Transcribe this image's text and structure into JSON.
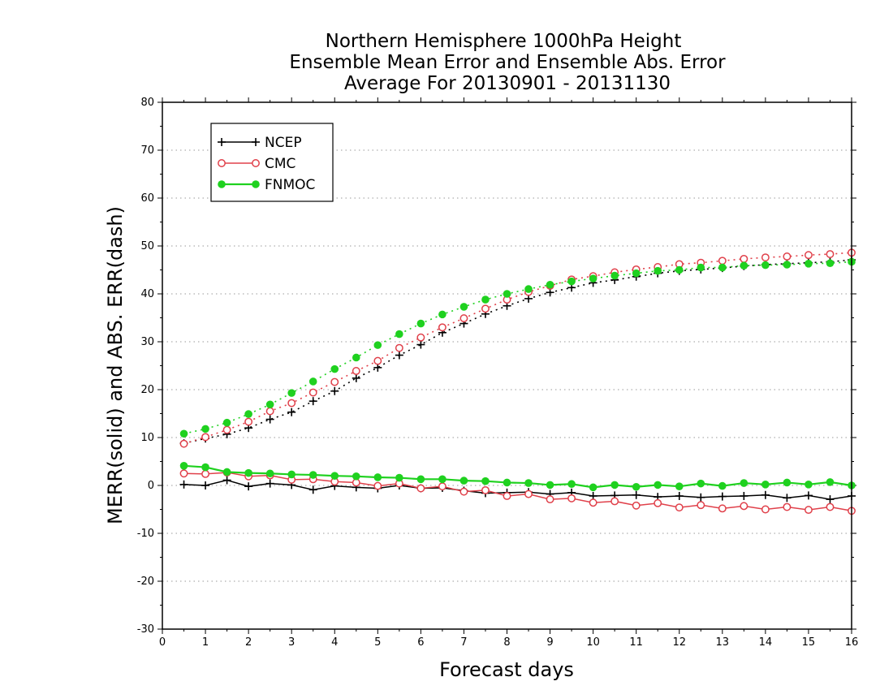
{
  "chart_data": {
    "type": "line",
    "title": [
      "Northern Hemisphere 1000hPa Height",
      "Ensemble Mean Error and Ensemble Abs. Error",
      "Average For 20130901 - 20131130"
    ],
    "xlabel": "Forecast days",
    "ylabel": "MERR(solid) and ABS. ERR(dash)",
    "xlim": [
      0,
      16
    ],
    "ylim": [
      -30,
      80
    ],
    "xticks": [
      0,
      1,
      2,
      3,
      4,
      5,
      6,
      7,
      8,
      9,
      10,
      11,
      12,
      13,
      14,
      15,
      16
    ],
    "yticks": [
      -30,
      -20,
      -10,
      0,
      10,
      20,
      30,
      40,
      50,
      60,
      70,
      80
    ],
    "grid": "horizontal dotted",
    "legend_position": "top-left",
    "x": [
      0.5,
      1,
      1.5,
      2,
      2.5,
      3,
      3.5,
      4,
      4.5,
      5,
      5.5,
      6,
      6.5,
      7,
      7.5,
      8,
      8.5,
      9,
      9.5,
      10,
      10.5,
      11,
      11.5,
      12,
      12.5,
      13,
      13.5,
      14,
      14.5,
      15,
      15.5,
      16
    ],
    "series": [
      {
        "name": "NCEP",
        "color": "#000000",
        "marker": "plus",
        "merr": [
          0.2,
          0,
          1.1,
          -0.2,
          0.4,
          0.1,
          -0.9,
          -0.1,
          -0.4,
          -0.6,
          0,
          -0.6,
          -0.5,
          -1.1,
          -1.6,
          -1.5,
          -1.4,
          -1.8,
          -1.5,
          -2.2,
          -2.1,
          -2.0,
          -2.4,
          -2.2,
          -2.5,
          -2.3,
          -2.2,
          -2.0,
          -2.6,
          -2.1,
          -2.9,
          -2.2
        ],
        "abs_err": [
          8.8,
          9.8,
          10.7,
          12.0,
          13.8,
          15.3,
          17.6,
          19.7,
          22.4,
          24.6,
          27.2,
          29.4,
          31.9,
          33.8,
          35.8,
          37.5,
          39.0,
          40.3,
          41.3,
          42.3,
          42.9,
          43.6,
          44.3,
          44.8,
          45.1,
          45.4,
          45.8,
          46.1,
          46.3,
          46.5,
          46.7,
          47.1
        ]
      },
      {
        "name": "CMC",
        "color": "#e0404a",
        "marker": "open-circle",
        "merr": [
          2.5,
          2.4,
          2.7,
          1.9,
          2.1,
          1.2,
          1.3,
          0.8,
          0.6,
          -0.1,
          0.4,
          -0.6,
          -0.2,
          -1.3,
          -1.0,
          -2.2,
          -1.8,
          -2.9,
          -2.7,
          -3.6,
          -3.3,
          -4.2,
          -3.7,
          -4.6,
          -4.1,
          -4.8,
          -4.3,
          -5.0,
          -4.5,
          -5.1,
          -4.5,
          -5.3
        ],
        "abs_err": [
          8.7,
          10.1,
          11.6,
          13.3,
          15.5,
          17.2,
          19.4,
          21.6,
          23.9,
          26.0,
          28.7,
          30.9,
          33.0,
          34.9,
          36.9,
          38.8,
          40.4,
          41.7,
          43.0,
          43.7,
          44.5,
          45.1,
          45.6,
          46.2,
          46.5,
          46.9,
          47.3,
          47.6,
          47.8,
          48.1,
          48.3,
          48.6
        ]
      },
      {
        "name": "FNMOC",
        "color": "#1fd11f",
        "marker": "filled-circle",
        "merr": [
          4.1,
          3.8,
          2.8,
          2.6,
          2.5,
          2.3,
          2.2,
          2.0,
          1.9,
          1.7,
          1.6,
          1.3,
          1.3,
          1.0,
          0.9,
          0.6,
          0.5,
          0.1,
          0.3,
          -0.4,
          0.1,
          -0.3,
          0.1,
          -0.2,
          0.4,
          -0.1,
          0.5,
          0.2,
          0.6,
          0.2,
          0.7,
          0.0
        ],
        "abs_err": [
          10.8,
          11.8,
          13.1,
          14.9,
          16.9,
          19.3,
          21.7,
          24.3,
          26.7,
          29.3,
          31.6,
          33.8,
          35.7,
          37.3,
          38.8,
          40.0,
          41.0,
          41.9,
          42.6,
          43.2,
          43.8,
          44.3,
          44.8,
          45.0,
          45.5,
          45.5,
          45.9,
          46.0,
          46.1,
          46.3,
          46.4,
          46.7
        ]
      }
    ]
  }
}
